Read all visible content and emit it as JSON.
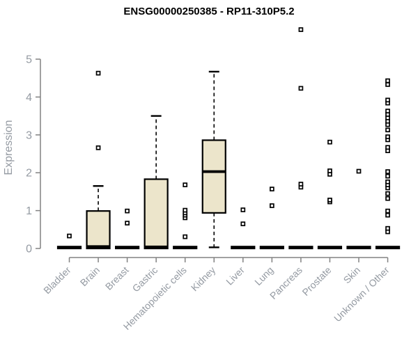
{
  "page": {
    "background": "#ffffff"
  },
  "chart_data": {
    "type": "boxplot",
    "title": "ENSG00000250385 - RP11-310P5.2",
    "ylabel": "Expression",
    "xlabel": "",
    "ylim": [
      0,
      5
    ],
    "yticks": [
      0,
      1,
      2,
      3,
      4,
      5
    ],
    "grid": false,
    "legend": "none",
    "colors": {
      "box_fill": "#ece5cb",
      "box_stroke": "#000000",
      "axis_color": "#828282",
      "tick_label_color": "#949aa2",
      "title_color": "#000000"
    },
    "categories": [
      "Bladder",
      "Brain",
      "Breast",
      "Gastric",
      "Hematopoietic cells",
      "Kidney",
      "Liver",
      "Lung",
      "Pancreas",
      "Prostate",
      "Skin",
      "Unknown / Other"
    ],
    "series": [
      {
        "category": "Bladder",
        "q1": 0,
        "median": 0.02,
        "q3": 0.05,
        "whisker_low": 0,
        "whisker_high": 0.05,
        "outliers": [
          0.33
        ]
      },
      {
        "category": "Brain",
        "q1": 0,
        "median": 0.05,
        "q3": 0.99,
        "whisker_low": 0,
        "whisker_high": 1.65,
        "outliers": [
          2.66,
          4.63
        ]
      },
      {
        "category": "Breast",
        "q1": 0,
        "median": 0.02,
        "q3": 0.05,
        "whisker_low": 0,
        "whisker_high": 0.05,
        "outliers": [
          0.67,
          0.99
        ]
      },
      {
        "category": "Gastric",
        "q1": 0,
        "median": 0.04,
        "q3": 1.83,
        "whisker_low": 0,
        "whisker_high": 3.5,
        "outliers": []
      },
      {
        "category": "Hematopoietic cells",
        "q1": 0,
        "median": 0.02,
        "q3": 0.05,
        "whisker_low": 0,
        "whisker_high": 0.05,
        "outliers": [
          0.31,
          0.81,
          0.88,
          0.94,
          1.01,
          1.68
        ]
      },
      {
        "category": "Kidney",
        "q1": 0.94,
        "median": 2.03,
        "q3": 2.86,
        "whisker_low": 0.03,
        "whisker_high": 4.67,
        "outliers": []
      },
      {
        "category": "Liver",
        "q1": 0,
        "median": 0.02,
        "q3": 0.05,
        "whisker_low": 0,
        "whisker_high": 0.05,
        "outliers": [
          0.65,
          1.02
        ]
      },
      {
        "category": "Lung",
        "q1": 0,
        "median": 0.02,
        "q3": 0.05,
        "whisker_low": 0,
        "whisker_high": 0.05,
        "outliers": [
          1.13,
          1.57
        ]
      },
      {
        "category": "Pancreas",
        "q1": 0,
        "median": 0.02,
        "q3": 0.05,
        "whisker_low": 0,
        "whisker_high": 0.05,
        "outliers": [
          1.62,
          1.7,
          4.23,
          5.78
        ]
      },
      {
        "category": "Prostate",
        "q1": 0,
        "median": 0.02,
        "q3": 0.05,
        "whisker_low": 0,
        "whisker_high": 0.05,
        "outliers": [
          1.23,
          1.28,
          1.96,
          2.05,
          2.81
        ]
      },
      {
        "category": "Skin",
        "q1": 0,
        "median": 0.02,
        "q3": 0.05,
        "whisker_low": 0,
        "whisker_high": 0.05,
        "outliers": [
          2.04
        ]
      },
      {
        "category": "Unknown / Other",
        "q1": 0,
        "median": 0.02,
        "q3": 0.05,
        "whisker_low": 0,
        "whisker_high": 0.05,
        "outliers": [
          0.44,
          0.53,
          0.88,
          0.99,
          1.32,
          1.45,
          1.6,
          1.68,
          1.76,
          1.91,
          2.03,
          2.58,
          2.67,
          2.87,
          2.95,
          3.13,
          3.27,
          3.36,
          3.45,
          3.54,
          3.63,
          3.84,
          3.92,
          4.33,
          4.43
        ]
      }
    ]
  }
}
